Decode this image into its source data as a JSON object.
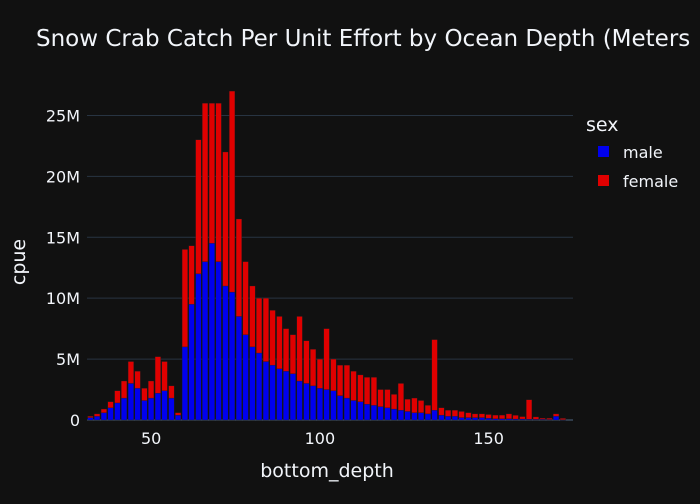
{
  "chart_data": {
    "type": "bar",
    "title": "Snow Crab Catch Per Unit Effort by Ocean Depth (Meters",
    "xlabel": "bottom_depth",
    "ylabel": "cpue",
    "xlim": [
      31,
      175
    ],
    "ylim": [
      0,
      27500000
    ],
    "xticks": [
      {
        "value": 50,
        "label": "50"
      },
      {
        "value": 100,
        "label": "100"
      },
      {
        "value": 150,
        "label": "150"
      }
    ],
    "yticks": [
      {
        "value": 0,
        "label": "0"
      },
      {
        "value": 5000000,
        "label": "5M"
      },
      {
        "value": 10000000,
        "label": "10M"
      },
      {
        "value": 15000000,
        "label": "15M"
      },
      {
        "value": 20000000,
        "label": "20M"
      },
      {
        "value": 25000000,
        "label": "25M"
      }
    ],
    "legend": {
      "title": "sex",
      "placement": "top-right"
    },
    "barmode": "stack",
    "x": [
      32,
      34,
      36,
      38,
      40,
      42,
      44,
      46,
      48,
      50,
      52,
      54,
      56,
      58,
      60,
      62,
      64,
      66,
      68,
      70,
      72,
      74,
      76,
      78,
      80,
      82,
      84,
      86,
      88,
      90,
      92,
      94,
      96,
      98,
      100,
      102,
      104,
      106,
      108,
      110,
      112,
      114,
      116,
      118,
      120,
      122,
      124,
      126,
      128,
      130,
      132,
      134,
      136,
      138,
      140,
      142,
      144,
      146,
      148,
      150,
      152,
      154,
      156,
      158,
      160,
      162,
      164,
      166,
      168,
      170,
      172
    ],
    "series": [
      {
        "name": "male",
        "color": "#0000ee",
        "values": [
          0.2,
          0.3,
          0.6,
          1,
          1.4,
          1.8,
          3,
          2.6,
          1.6,
          1.8,
          2.2,
          2.4,
          1.8,
          0.4,
          6,
          9.5,
          12,
          13,
          14.5,
          13,
          11,
          10.5,
          8.5,
          7,
          6,
          5.5,
          4.8,
          4.5,
          4.2,
          4,
          3.8,
          3.2,
          3,
          2.8,
          2.6,
          2.5,
          2.4,
          2,
          1.8,
          1.6,
          1.5,
          1.3,
          1.2,
          1.1,
          1,
          0.9,
          0.8,
          0.7,
          0.6,
          0.6,
          0.5,
          0.8,
          0.4,
          0.3,
          0.3,
          0.2,
          0.2,
          0.2,
          0.2,
          0.15,
          0.1,
          0.1,
          0.1,
          0.08,
          0.08,
          0.06,
          0.05,
          0.05,
          0.04,
          0.3,
          0.03
        ]
      },
      {
        "name": "female",
        "color": "#e00000",
        "values": [
          0.1,
          0.2,
          0.3,
          0.5,
          1,
          1.4,
          1.8,
          1.4,
          1,
          1.4,
          3,
          2.4,
          1,
          0.2,
          8,
          4.8,
          11,
          13,
          11.5,
          13,
          11,
          16.5,
          8,
          6,
          5,
          4.5,
          5.2,
          4.5,
          4.3,
          3.5,
          3.2,
          5.3,
          3.5,
          3,
          2.4,
          5,
          2.6,
          2.5,
          2.7,
          2.4,
          2.2,
          2.2,
          2.3,
          1.4,
          1.5,
          1.2,
          2.2,
          1,
          1.2,
          1,
          0.7,
          5.8,
          0.6,
          0.5,
          0.5,
          0.5,
          0.4,
          0.3,
          0.3,
          0.3,
          0.3,
          0.3,
          0.4,
          0.3,
          0.2,
          1.6,
          0.2,
          0.1,
          0.1,
          0.2,
          0.1
        ]
      }
    ],
    "value_unit_multiplier": 1000000
  }
}
